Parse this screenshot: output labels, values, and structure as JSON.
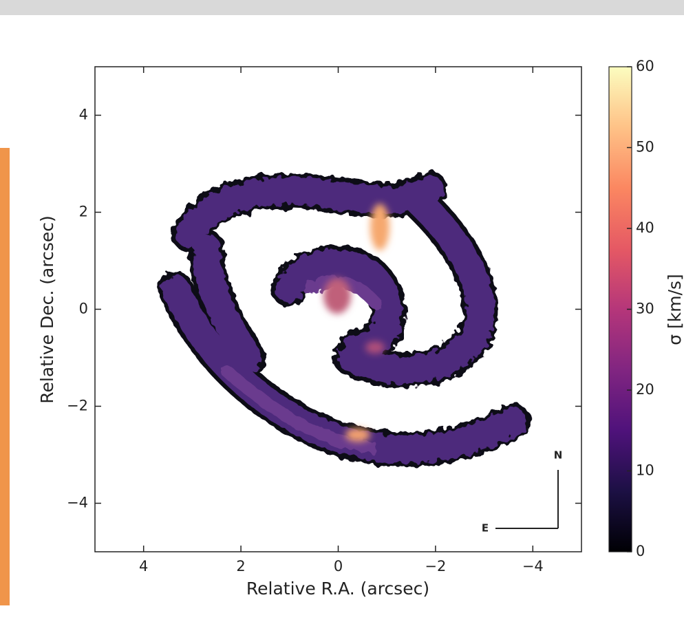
{
  "chart_data": {
    "type": "image",
    "xlabel": "Relative R.A. (arcsec)",
    "ylabel": "Relative Dec. (arcsec)",
    "xlim": [
      5,
      -5
    ],
    "ylim": [
      -5,
      5
    ],
    "xticks": [
      4,
      2,
      0,
      {
        "value": -2,
        "label": "−2"
      },
      {
        "value": -4,
        "label": "−4"
      }
    ],
    "yticks": [
      {
        "value": -4,
        "label": "−4"
      },
      {
        "value": -2,
        "label": "−2"
      },
      0,
      2,
      4
    ],
    "colormap": "magma",
    "colorbar_label": "σ [km/s]",
    "clim": [
      0,
      60
    ],
    "cticks": [
      0,
      10,
      20,
      30,
      40,
      50,
      60
    ],
    "compass": {
      "north": "N",
      "east": "E"
    }
  }
}
